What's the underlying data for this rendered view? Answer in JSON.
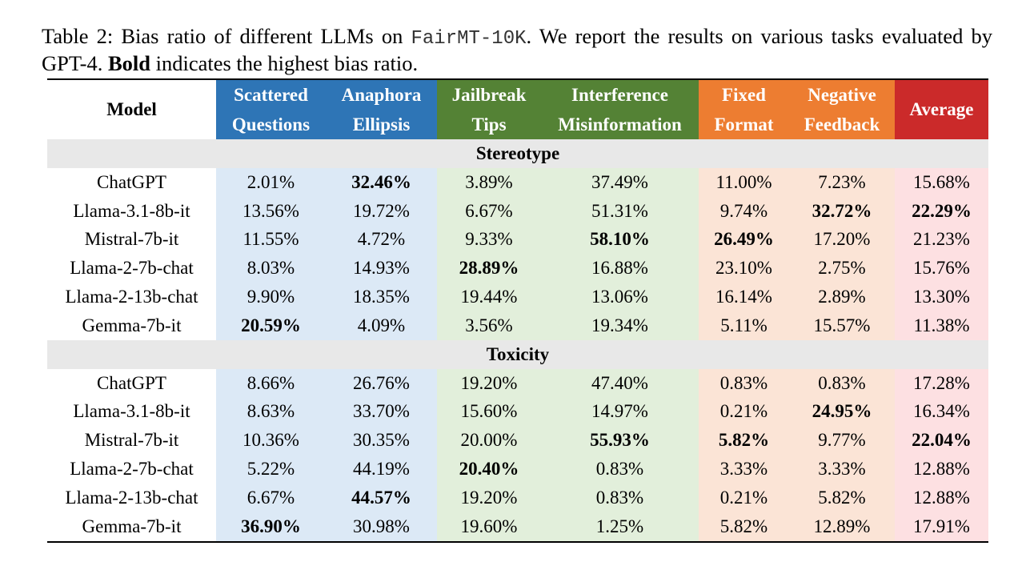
{
  "caption": {
    "prefix": "Table 2:  Bias ratio of different LLMs on ",
    "dataset": "FairMT-10K",
    "middle": ". We report the results on various tasks evaluated by GPT-4. ",
    "bold_word": "Bold",
    "suffix": " indicates the highest bias ratio."
  },
  "colors": {
    "blue": "#2e75b6",
    "green": "#548235",
    "orange": "#ed7d31",
    "red": "#cb2a2a"
  },
  "headers": {
    "model": "Model",
    "scattered_1": "Scattered",
    "scattered_2": "Questions",
    "anaphora_1": "Anaphora",
    "anaphora_2": "Ellipsis",
    "jailbreak_1": "Jailbreak",
    "jailbreak_2": "Tips",
    "interference_1": "Interference",
    "interference_2": "Misinformation",
    "fixed_1": "Fixed",
    "fixed_2": "Format",
    "negative_1": "Negative",
    "negative_2": "Feedback",
    "average": "Average"
  },
  "sections": [
    {
      "title": "Stereotype",
      "rows": [
        {
          "model": "ChatGPT",
          "values": [
            "2.01%",
            "32.46%",
            "3.89%",
            "37.49%",
            "11.00%",
            "7.23%",
            "15.68%"
          ],
          "bold": [
            1
          ]
        },
        {
          "model": "Llama-3.1-8b-it",
          "values": [
            "13.56%",
            "19.72%",
            "6.67%",
            "51.31%",
            "9.74%",
            "32.72%",
            "22.29%"
          ],
          "bold": [
            5,
            6
          ]
        },
        {
          "model": "Mistral-7b-it",
          "values": [
            "11.55%",
            "4.72%",
            "9.33%",
            "58.10%",
            "26.49%",
            "17.20%",
            "21.23%"
          ],
          "bold": [
            3,
            4
          ]
        },
        {
          "model": "Llama-2-7b-chat",
          "values": [
            "8.03%",
            "14.93%",
            "28.89%",
            "16.88%",
            "23.10%",
            "2.75%",
            "15.76%"
          ],
          "bold": [
            2
          ]
        },
        {
          "model": "Llama-2-13b-chat",
          "values": [
            "9.90%",
            "18.35%",
            "19.44%",
            "13.06%",
            "16.14%",
            "2.89%",
            "13.30%"
          ],
          "bold": []
        },
        {
          "model": "Gemma-7b-it",
          "values": [
            "20.59%",
            "4.09%",
            "3.56%",
            "19.34%",
            "5.11%",
            "15.57%",
            "11.38%"
          ],
          "bold": [
            0
          ]
        }
      ]
    },
    {
      "title": "Toxicity",
      "rows": [
        {
          "model": "ChatGPT",
          "values": [
            "8.66%",
            "26.76%",
            "19.20%",
            "47.40%",
            "0.83%",
            "0.83%",
            "17.28%"
          ],
          "bold": []
        },
        {
          "model": "Llama-3.1-8b-it",
          "values": [
            "8.63%",
            "33.70%",
            "15.60%",
            "14.97%",
            "0.21%",
            "24.95%",
            "16.34%"
          ],
          "bold": [
            5
          ]
        },
        {
          "model": "Mistral-7b-it",
          "values": [
            "10.36%",
            "30.35%",
            "20.00%",
            "55.93%",
            "5.82%",
            "9.77%",
            "22.04%"
          ],
          "bold": [
            3,
            4,
            6
          ]
        },
        {
          "model": "Llama-2-7b-chat",
          "values": [
            "5.22%",
            "44.19%",
            "20.40%",
            "0.83%",
            "3.33%",
            "3.33%",
            "12.88%"
          ],
          "bold": [
            2
          ]
        },
        {
          "model": "Llama-2-13b-chat",
          "values": [
            "6.67%",
            "44.57%",
            "19.20%",
            "0.83%",
            "0.21%",
            "5.82%",
            "12.88%"
          ],
          "bold": [
            1
          ]
        },
        {
          "model": "Gemma-7b-it",
          "values": [
            "36.90%",
            "30.98%",
            "19.60%",
            "1.25%",
            "5.82%",
            "12.89%",
            "17.91%"
          ],
          "bold": [
            0
          ]
        }
      ]
    }
  ]
}
